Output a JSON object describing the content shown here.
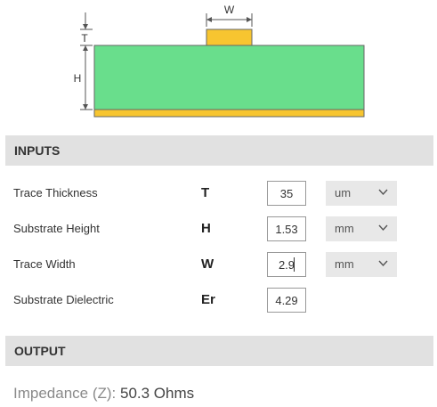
{
  "diagram": {
    "width_label": "W",
    "thickness_label": "T",
    "height_label": "H",
    "colors": {
      "substrate": "#69de8c",
      "copper": "#f7c530",
      "outline": "#555555"
    }
  },
  "inputs": {
    "header": "INPUTS",
    "rows": [
      {
        "label": "Trace Thickness",
        "symbol": "T",
        "value": "35",
        "unit": "um"
      },
      {
        "label": "Substrate Height",
        "symbol": "H",
        "value": "1.53",
        "unit": "mm"
      },
      {
        "label": "Trace Width",
        "symbol": "W",
        "value": "2.9",
        "unit": "mm"
      },
      {
        "label": "Substrate Dielectric",
        "symbol": "Er",
        "value": "4.29"
      }
    ]
  },
  "output": {
    "header": "OUTPUT",
    "result_label": "Impedance (Z):",
    "result_value": "50.3 Ohms"
  }
}
